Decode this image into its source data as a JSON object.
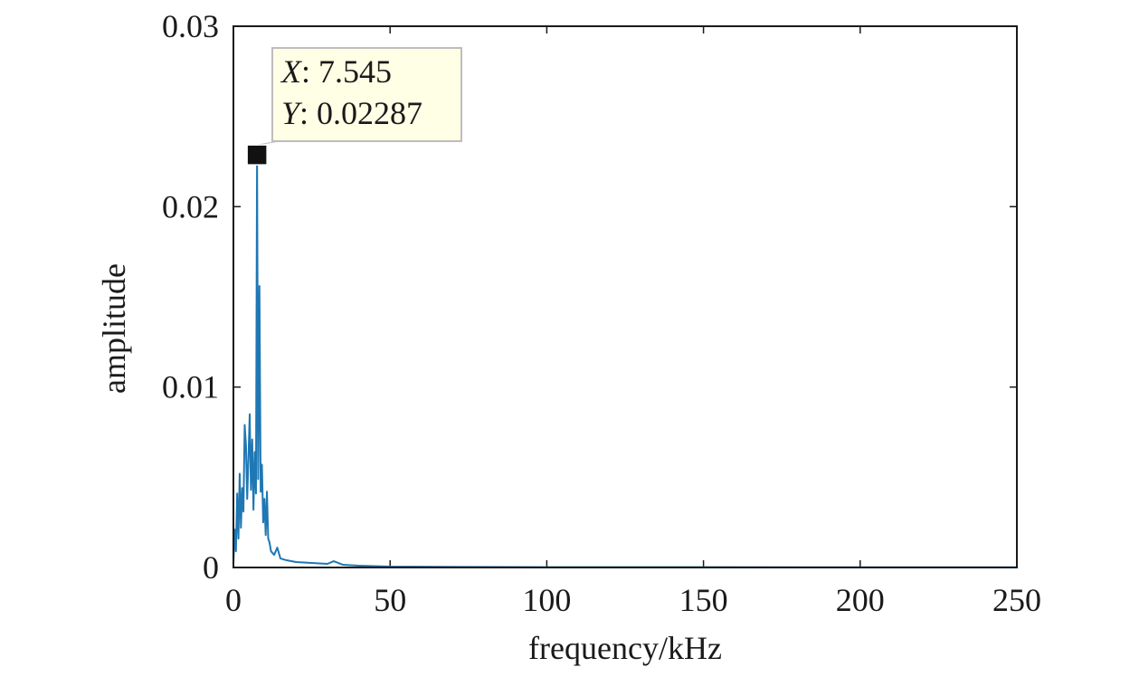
{
  "chart_data": {
    "type": "line",
    "xlabel": "frequency/kHz",
    "ylabel": "amplitude",
    "xlim": [
      0,
      250
    ],
    "ylim": [
      0,
      0.03
    ],
    "xticks": [
      0,
      50,
      100,
      150,
      200,
      250
    ],
    "xtick_labels": [
      "0",
      "50",
      "100",
      "150",
      "200",
      "250"
    ],
    "yticks": [
      0,
      0.01,
      0.02,
      0.03
    ],
    "ytick_labels": [
      "0",
      "0.01",
      "0.02",
      "0.03"
    ],
    "grid": false,
    "line_color": "#1f77b4",
    "series": [
      {
        "x": [
          0,
          0.4,
          0.8,
          1.2,
          1.6,
          2.0,
          2.4,
          2.8,
          3.2,
          3.6,
          4.0,
          4.4,
          4.8,
          5.2,
          5.6,
          6.0,
          6.4,
          6.8,
          7.2,
          7.545,
          7.9,
          8.3,
          8.7,
          9.1,
          9.5,
          9.9,
          10.3,
          10.7,
          11.1,
          11.5,
          12,
          13,
          14,
          15,
          17,
          20,
          25,
          30,
          32,
          35,
          40,
          50,
          75,
          100,
          150,
          200,
          250
        ],
        "y": [
          0.0002,
          0.0021,
          0.0009,
          0.0041,
          0.0016,
          0.0052,
          0.0022,
          0.0044,
          0.0031,
          0.0079,
          0.0068,
          0.0038,
          0.0061,
          0.0085,
          0.0043,
          0.0071,
          0.0032,
          0.0064,
          0.0041,
          0.02287,
          0.0049,
          0.0156,
          0.0042,
          0.0057,
          0.0025,
          0.0038,
          0.0018,
          0.0042,
          0.0016,
          0.0014,
          0.0009,
          0.0007,
          0.0011,
          0.0005,
          0.0004,
          0.0003,
          0.00025,
          0.0002,
          0.00035,
          0.00015,
          0.0001,
          5e-05,
          3e-05,
          2e-05,
          2e-05,
          1e-05,
          1e-05
        ]
      }
    ],
    "datatip": {
      "x": 7.545,
      "y": 0.02287,
      "x_prefix": "X",
      "y_prefix": "Y",
      "x_text": ": 7.545",
      "y_text": ": 0.02287",
      "box_color": "#ffffe6",
      "marker_color": "#111111"
    }
  }
}
